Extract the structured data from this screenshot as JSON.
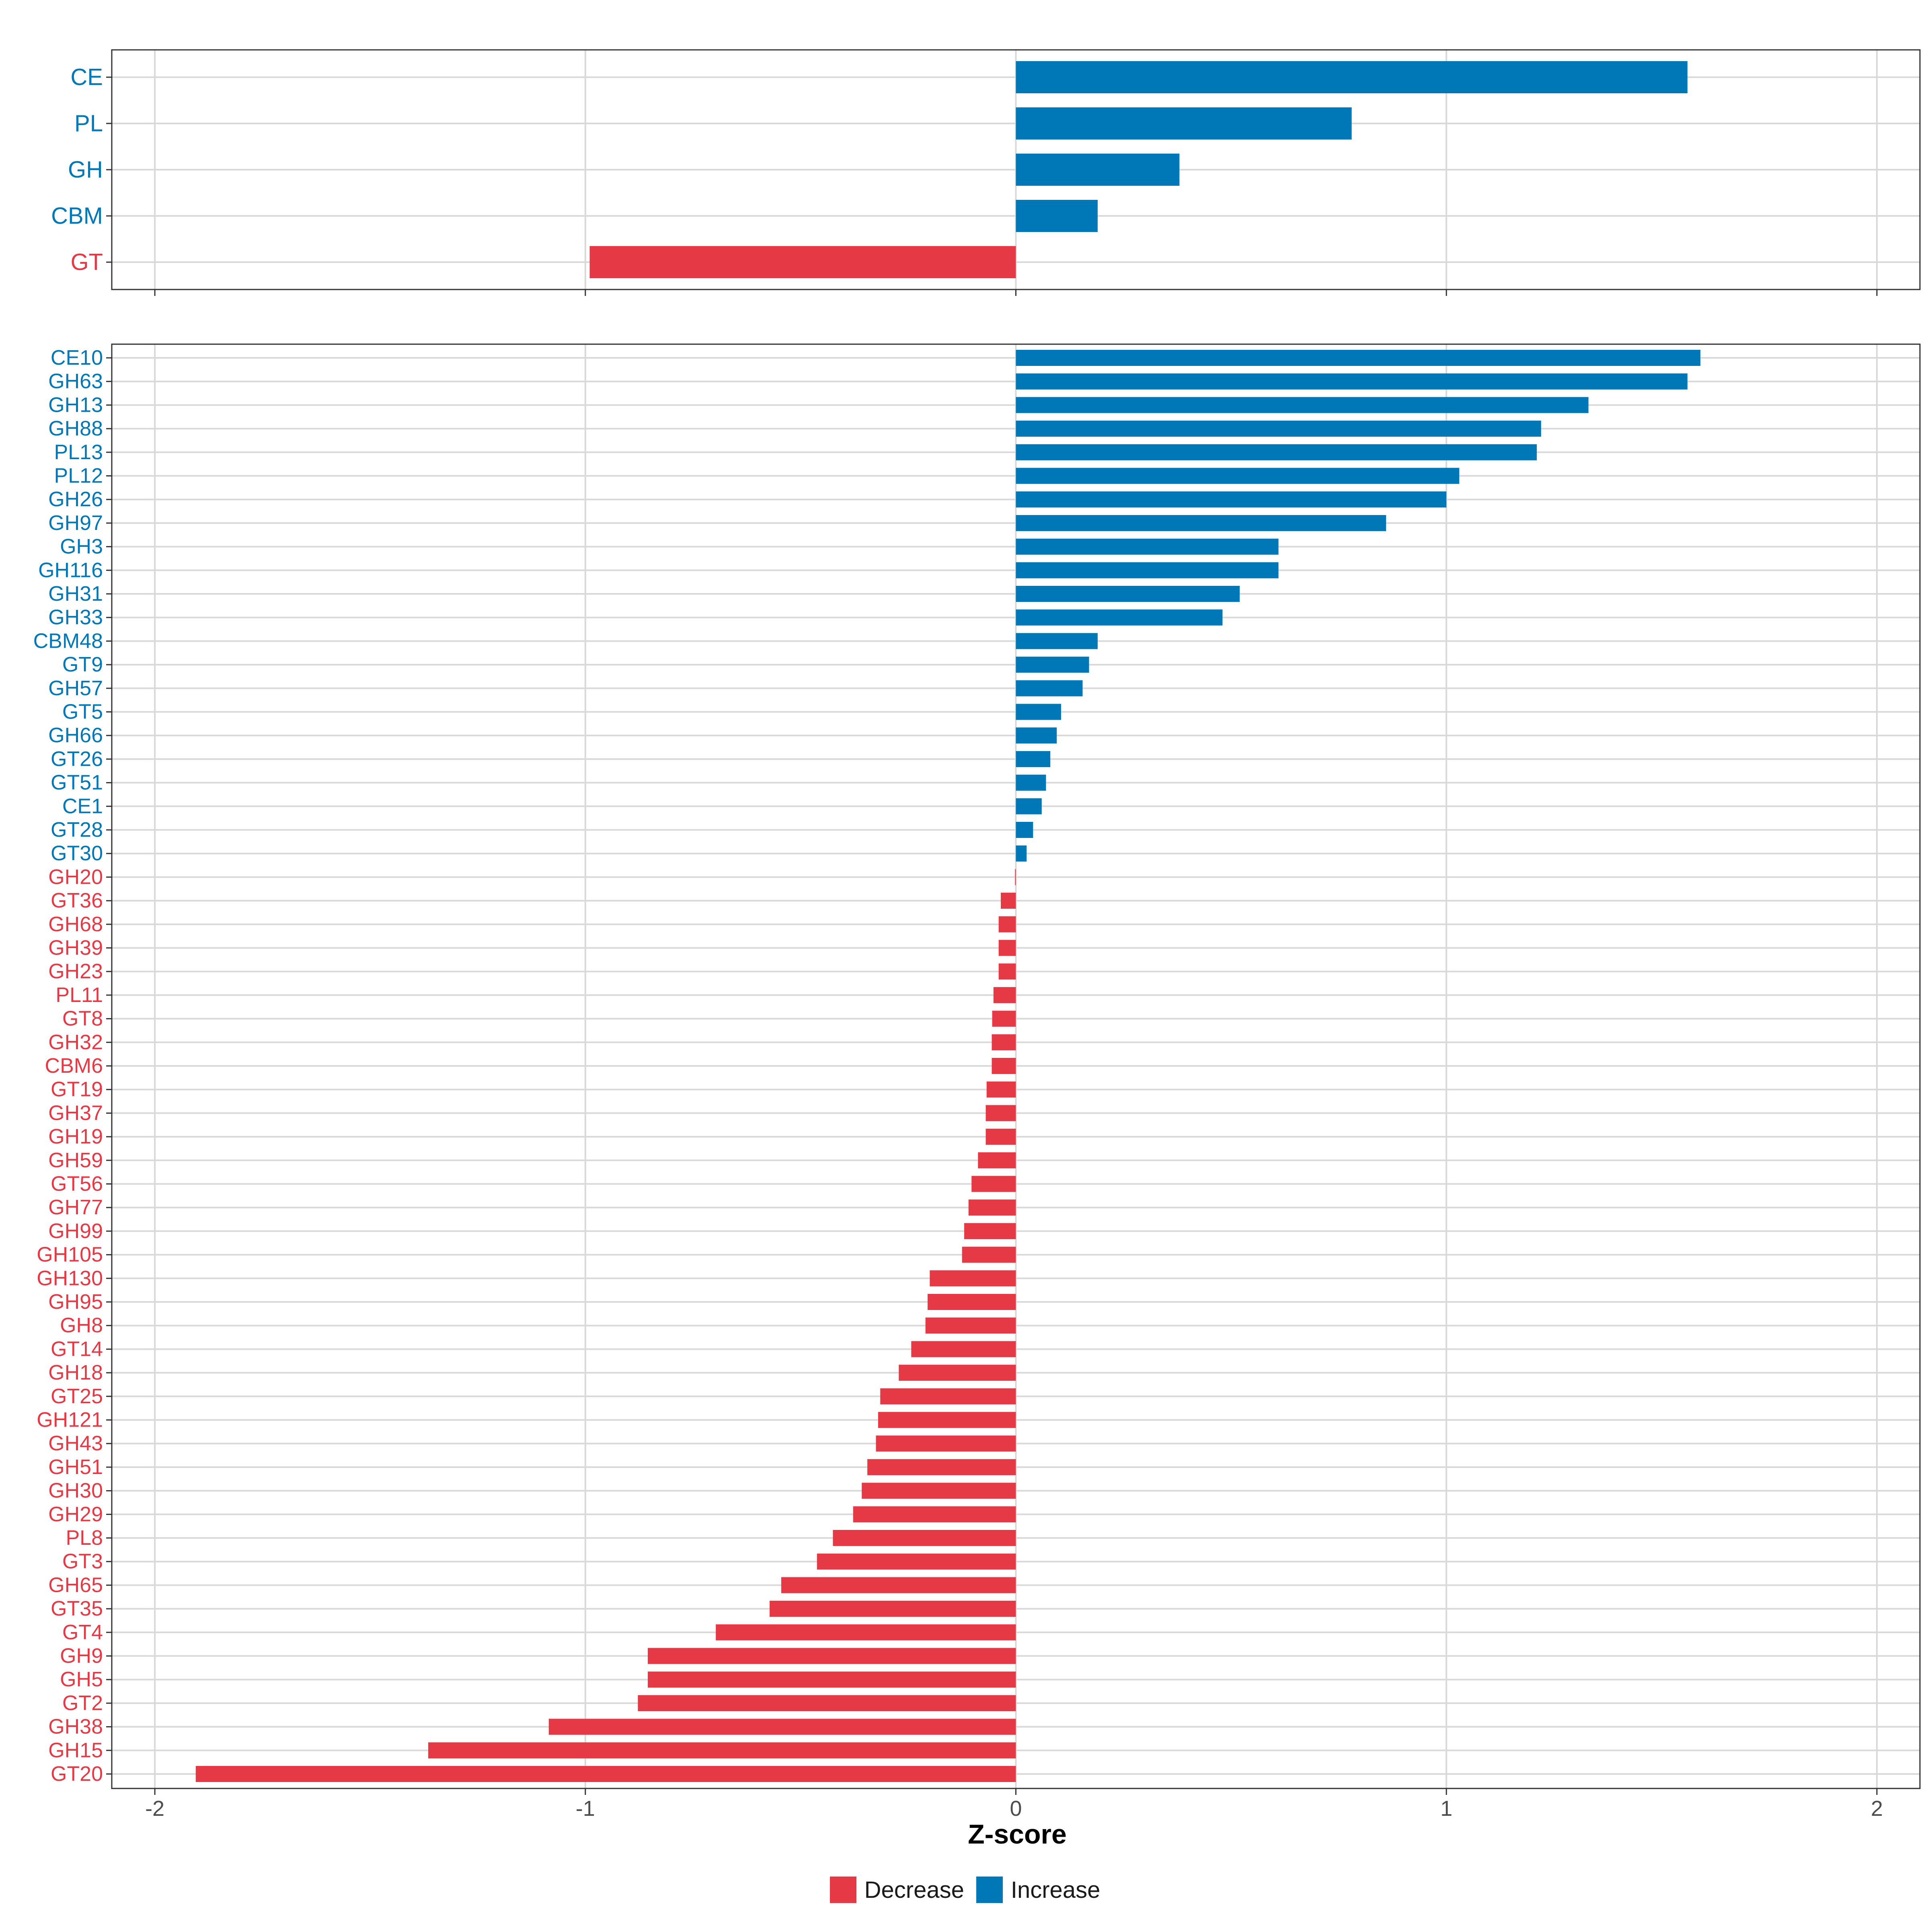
{
  "colors": {
    "decrease": "#E63946",
    "increase": "#0077B6",
    "grid": "#d9d9d9",
    "axis": "#333333"
  },
  "legend": {
    "decrease_label": "Decrease",
    "increase_label": "Increase"
  },
  "chart_data": [
    {
      "type": "bar",
      "orientation": "horizontal",
      "panel": "top",
      "categories": [
        "CE",
        "PL",
        "GH",
        "CBM",
        "GT"
      ],
      "values": [
        1.56,
        0.78,
        0.38,
        0.19,
        -0.99
      ],
      "xlim": [
        -2.1,
        2.1
      ],
      "xticks": [
        -2,
        -1,
        0,
        1,
        2
      ],
      "grid": true
    },
    {
      "type": "bar",
      "orientation": "horizontal",
      "panel": "bottom",
      "xlabel": "Z-score",
      "xlim": [
        -2.1,
        2.1
      ],
      "xticks": [
        -2,
        -1,
        0,
        1,
        2
      ],
      "xtick_labels": [
        "-2",
        "-1",
        "0",
        "1",
        "2"
      ],
      "grid": true,
      "categories": [
        "CE10",
        "GH63",
        "GH13",
        "GH88",
        "PL13",
        "PL12",
        "GH26",
        "GH97",
        "GH3",
        "GH116",
        "GH31",
        "GH33",
        "CBM48",
        "GT9",
        "GH57",
        "GT5",
        "GH66",
        "GT26",
        "GT51",
        "CE1",
        "GT28",
        "GT30",
        "GH20",
        "GT36",
        "GH68",
        "GH39",
        "GH23",
        "PL11",
        "GT8",
        "GH32",
        "CBM6",
        "GT19",
        "GH37",
        "GH19",
        "GH59",
        "GT56",
        "GH77",
        "GH99",
        "GH105",
        "GH130",
        "GH95",
        "GH8",
        "GT14",
        "GH18",
        "GT25",
        "GH121",
        "GH43",
        "GH51",
        "GH30",
        "GH29",
        "PL8",
        "GT3",
        "GH65",
        "GT35",
        "GT4",
        "GH9",
        "GH5",
        "GT2",
        "GH38",
        "GH15",
        "GT20"
      ],
      "values": [
        1.59,
        1.56,
        1.33,
        1.22,
        1.21,
        1.03,
        1.0,
        0.86,
        0.61,
        0.61,
        0.52,
        0.48,
        0.19,
        0.17,
        0.155,
        0.105,
        0.095,
        0.08,
        0.07,
        0.06,
        0.04,
        0.025,
        -0.002,
        -0.035,
        -0.04,
        -0.04,
        -0.04,
        -0.052,
        -0.055,
        -0.056,
        -0.056,
        -0.068,
        -0.07,
        -0.07,
        -0.088,
        -0.103,
        -0.11,
        -0.12,
        -0.125,
        -0.2,
        -0.205,
        -0.21,
        -0.243,
        -0.272,
        -0.315,
        -0.32,
        -0.325,
        -0.345,
        -0.358,
        -0.378,
        -0.425,
        -0.462,
        -0.545,
        -0.572,
        -0.697,
        -0.855,
        -0.855,
        -0.878,
        -1.085,
        -1.365,
        -1.905
      ]
    }
  ]
}
